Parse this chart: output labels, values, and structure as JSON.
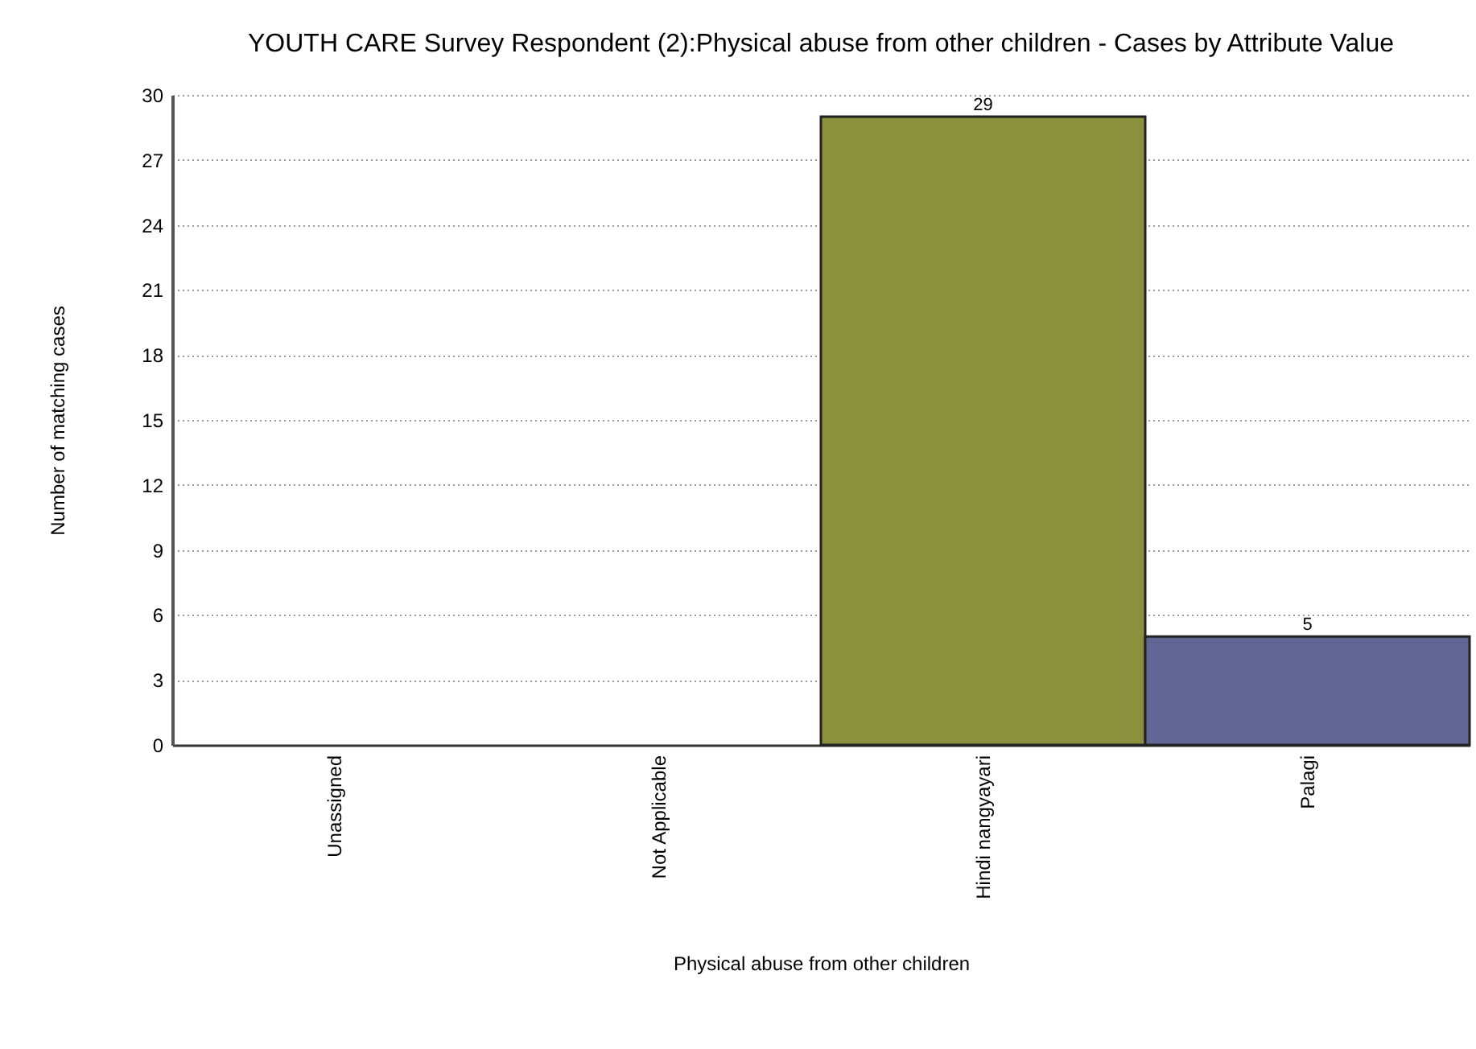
{
  "chart_data": {
    "type": "bar",
    "title": "YOUTH CARE Survey Respondent (2):Physical abuse from other children - Cases by Attribute Value",
    "xlabel": "Physical abuse from other children",
    "ylabel": "Number of matching cases",
    "categories": [
      "Unassigned",
      "Not Applicable",
      "Hindi nangyayari",
      "Palagi"
    ],
    "values": [
      0,
      0,
      29,
      5
    ],
    "colors": [
      null,
      null,
      "#8b903c",
      "#626694"
    ],
    "value_labels": [
      null,
      null,
      "29",
      "5"
    ],
    "ylim": [
      0,
      30
    ],
    "yticks": [
      0,
      3,
      6,
      9,
      12,
      15,
      18,
      21,
      24,
      27,
      30
    ],
    "grid": "y"
  }
}
